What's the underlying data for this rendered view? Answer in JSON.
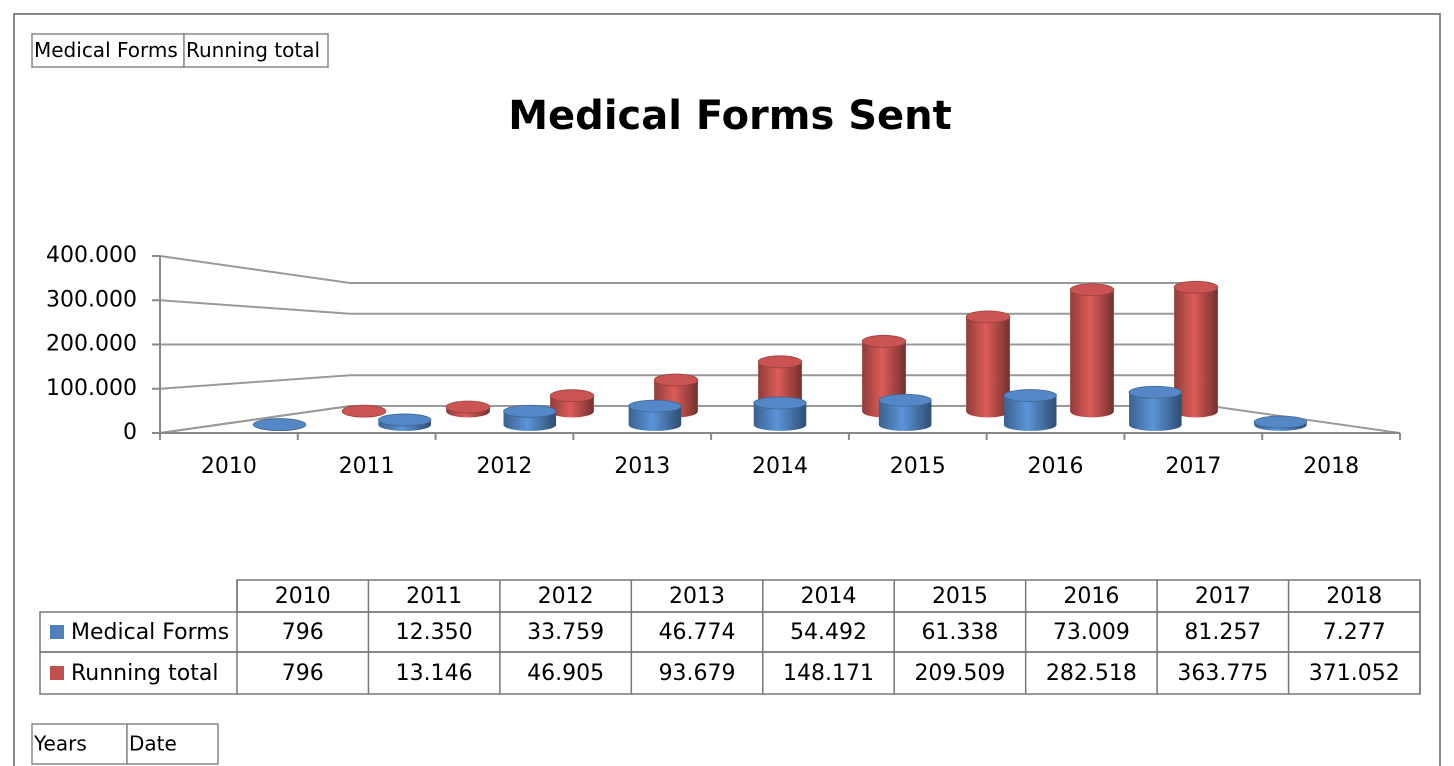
{
  "chart_data": {
    "type": "bar3d",
    "title": "Medical Forms Sent",
    "field_buttons": [
      "Medical Forms",
      "Running total"
    ],
    "axis_field_buttons": [
      "Years",
      "Date"
    ],
    "categories": [
      "2010",
      "2011",
      "2012",
      "2013",
      "2014",
      "2015",
      "2016",
      "2017",
      "2018"
    ],
    "series": [
      {
        "name": "Medical Forms",
        "color": "#4f81bd",
        "values": [
          796,
          12350,
          33759,
          46774,
          54492,
          61338,
          73009,
          81257,
          7277
        ],
        "value_labels": [
          "796",
          "12.350",
          "33.759",
          "46.774",
          "54.492",
          "61.338",
          "73.009",
          "81.257",
          "7.277"
        ]
      },
      {
        "name": "Running total",
        "color": "#c0504d",
        "values": [
          796,
          13146,
          46905,
          93679,
          148171,
          209509,
          282518,
          363775,
          371052
        ],
        "value_labels": [
          "796",
          "13.146",
          "46.905",
          "93.679",
          "148.171",
          "209.509",
          "282.518",
          "363.775",
          "371.052"
        ]
      }
    ],
    "ylim": [
      0,
      400000
    ],
    "yticks": [
      0,
      {
        "value": 100000,
        "label": "100.000"
      },
      {
        "value": 200000,
        "label": "200.000"
      },
      {
        "value": 300000,
        "label": "300.000"
      },
      {
        "value": 400000,
        "label": "400.000"
      }
    ],
    "grid": true,
    "data_table": true
  }
}
